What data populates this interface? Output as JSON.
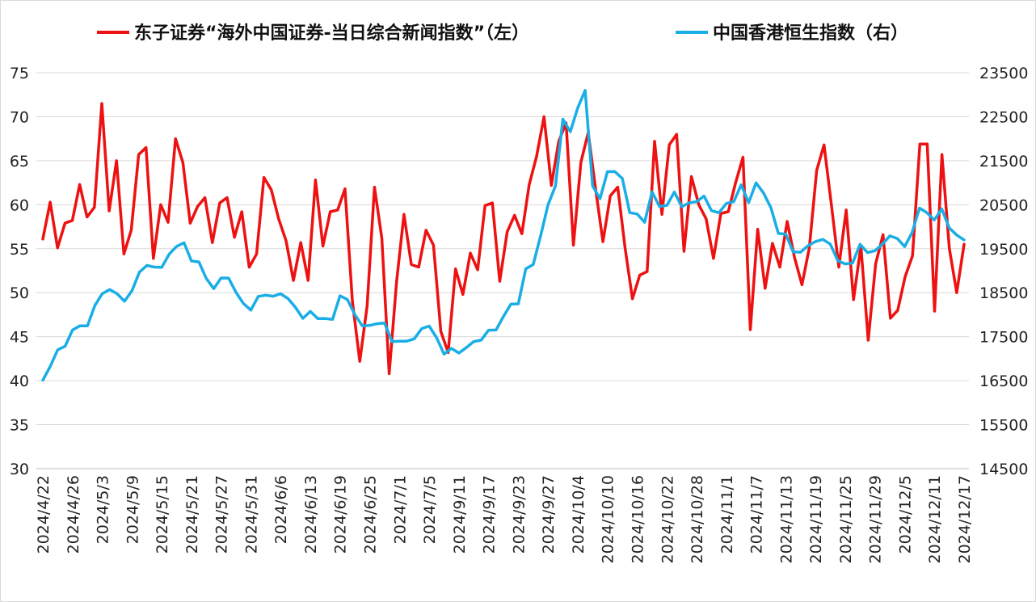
{
  "colors": {
    "left_series": "#ee1111",
    "right_series": "#1aaee6",
    "grid": "#d9d9d9"
  },
  "chart_data": {
    "type": "line",
    "grid": true,
    "legend_position": "top",
    "left_axis": {
      "min": 30,
      "max": 75,
      "ticks": [
        30,
        35,
        40,
        45,
        50,
        55,
        60,
        65,
        70,
        75
      ]
    },
    "right_axis": {
      "min": 14500,
      "max": 23500,
      "ticks": [
        14500,
        15500,
        16500,
        17500,
        18500,
        19500,
        20500,
        21500,
        22500,
        23500
      ]
    },
    "x_tick_labels": [
      "2024/4/22",
      "2024/4/26",
      "2024/5/3",
      "2024/5/9",
      "2024/5/15",
      "2024/5/21",
      "2024/5/27",
      "2024/5/31",
      "2024/6/6",
      "2024/6/13",
      "2024/6/19",
      "2024/6/25",
      "2024/7/1",
      "2024/7/5",
      "2024/9/11",
      "2024/9/17",
      "2024/9/23",
      "2024/9/27",
      "2024/10/4",
      "2024/10/10",
      "2024/10/16",
      "2024/10/22",
      "2024/10/28",
      "2024/11/1",
      "2024/11/7",
      "2024/11/13",
      "2024/11/19",
      "2024/11/25",
      "2024/11/29",
      "2024/12/5",
      "2024/12/11",
      "2024/12/17"
    ],
    "series": [
      {
        "name": "东子证券“海外中国证券-当日综合新闻指数”（左）",
        "axis": "left",
        "values": [
          56.1,
          60.3,
          55.1,
          57.9,
          58.2,
          62.3,
          58.6,
          59.7,
          71.5,
          59.3,
          65.0,
          54.4,
          57.1,
          65.7,
          66.5,
          53.9,
          60.0,
          58.0,
          67.5,
          64.8,
          57.9,
          59.8,
          60.8,
          55.7,
          60.2,
          60.8,
          56.3,
          59.2,
          52.9,
          54.4,
          63.1,
          61.7,
          58.4,
          55.9,
          51.4,
          55.7,
          51.4,
          62.8,
          55.3,
          59.2,
          59.4,
          61.8,
          49.1,
          42.2,
          48.5,
          62.0,
          56.2,
          40.8,
          51.3,
          58.9,
          53.2,
          52.9,
          57.1,
          55.4,
          45.6,
          43.2,
          52.7,
          49.8,
          54.5,
          52.6,
          59.9,
          60.2,
          51.3,
          56.9,
          58.8,
          56.7,
          62.3,
          65.5,
          70.0,
          62.2,
          67.2,
          69.3,
          55.4,
          64.8,
          68.2,
          61.8,
          55.8,
          61.0,
          62.0,
          55.1,
          49.3,
          52.0,
          52.4,
          67.2,
          58.9,
          66.8,
          68.0,
          54.7,
          63.2,
          60.0,
          58.4,
          53.9,
          59.0,
          59.2,
          62.5,
          65.4,
          45.8,
          57.2,
          50.5,
          55.6,
          52.9,
          58.1,
          54.0,
          50.9,
          55.1,
          63.9,
          66.8,
          60.0,
          52.9,
          59.4,
          49.2,
          55.3,
          44.6,
          53.3,
          56.6,
          47.1,
          48.0,
          51.8,
          54.2,
          66.9,
          66.9,
          47.9,
          65.7,
          55.0,
          50.0,
          55.5
        ]
      },
      {
        "name": "中国香港恒生指数（右）",
        "axis": "right",
        "values": [
          16512,
          16828,
          17201,
          17284,
          17652,
          17747,
          17746,
          18208,
          18476,
          18572,
          18477,
          18306,
          18544,
          18967,
          19120,
          19082,
          19076,
          19375,
          19553,
          19636,
          19220,
          19200,
          18822,
          18592,
          18834,
          18833,
          18510,
          18254,
          18103,
          18416,
          18444,
          18420,
          18477,
          18367,
          18166,
          17916,
          18074,
          17912,
          17914,
          17892,
          18430,
          18345,
          18000,
          17748,
          17757,
          17796,
          17810,
          17390,
          17398,
          17398,
          17454,
          17684,
          17742,
          17475,
          17103,
          17234,
          17129,
          17251,
          17388,
          17422,
          17649,
          17651,
          17961,
          18240,
          18247,
          19043,
          19140,
          19794,
          20500,
          20929,
          22443,
          22160,
          22700,
          23099,
          20926,
          20637,
          21252,
          21252,
          21096,
          20318,
          20290,
          20100,
          20793,
          20461,
          20485,
          20789,
          20455,
          20542,
          20569,
          20698,
          20366,
          20317,
          20529,
          20571,
          20953,
          20549,
          20996,
          20767,
          20430,
          19846,
          19830,
          19426,
          19420,
          19568,
          19663,
          19711,
          19603,
          19228,
          19155,
          19176,
          19600,
          19412,
          19453,
          19602,
          19791,
          19732,
          19547,
          19863,
          20424,
          20318,
          20154,
          20405,
          19973,
          19812,
          19700
        ]
      }
    ]
  }
}
